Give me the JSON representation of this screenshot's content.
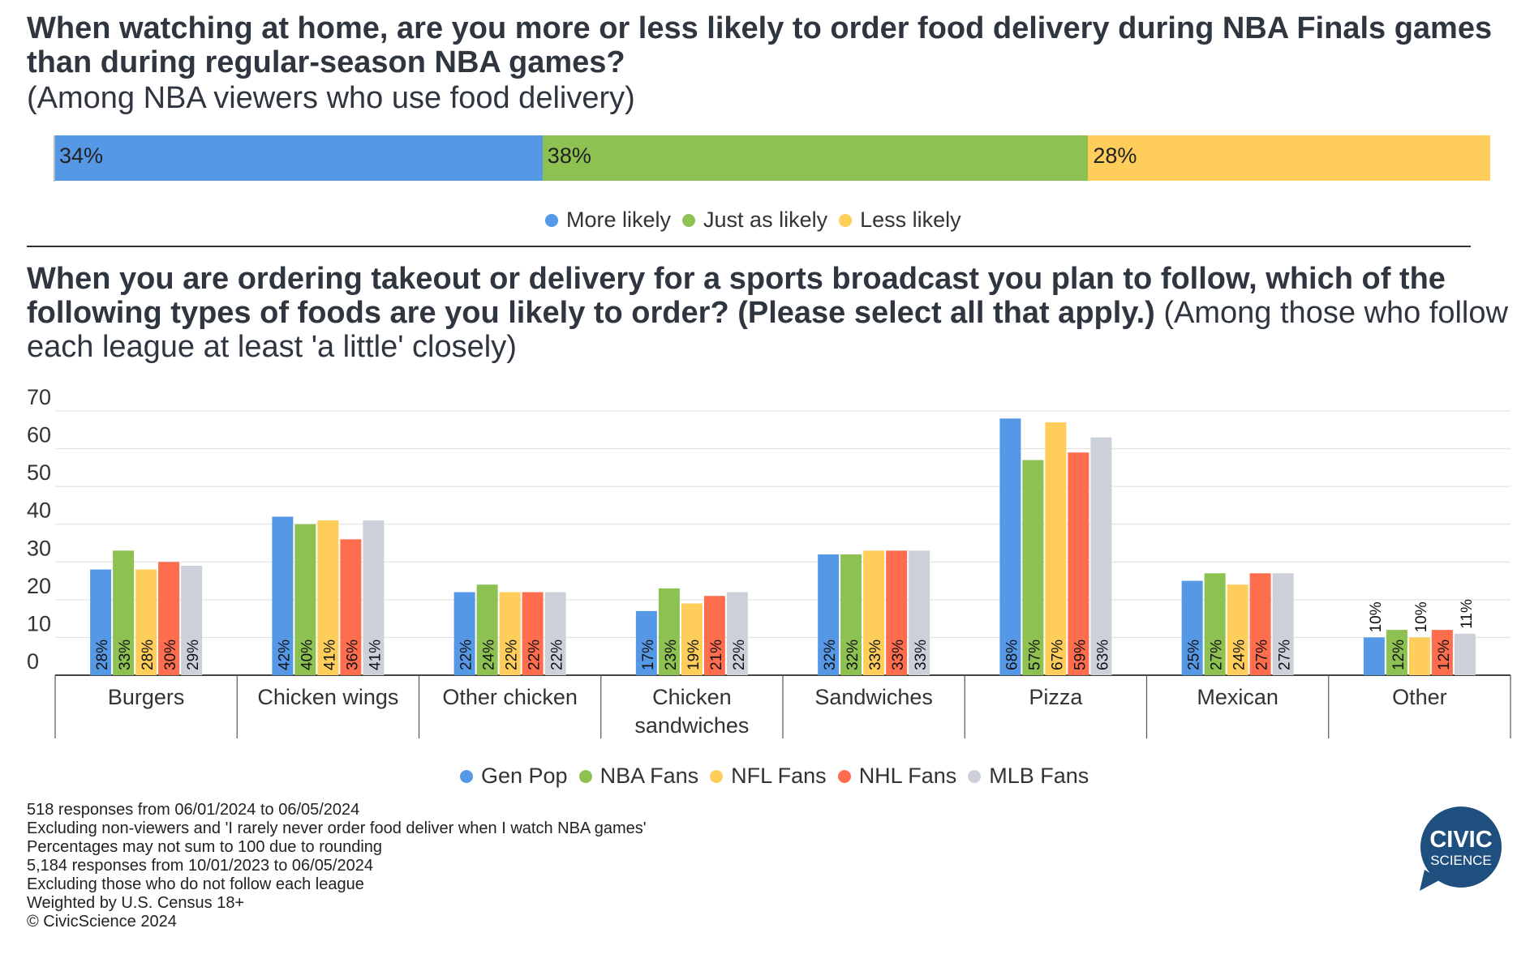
{
  "top": {
    "title": "When watching at home, are you more or less likely to order food delivery during NBA Finals games than during regular-season NBA games?",
    "subtitle": "(Among NBA viewers who use food delivery)",
    "segments": [
      {
        "label": "More likely",
        "value": 34,
        "text": "34%",
        "color": "#5599e6"
      },
      {
        "label": "Just as likely",
        "value": 38,
        "text": "38%",
        "color": "#8dc152"
      },
      {
        "label": "Less likely",
        "value": 28,
        "text": "28%",
        "color": "#fecd5a"
      }
    ]
  },
  "bottom": {
    "title_bold": "When you are ordering takeout or delivery for a sports broadcast you plan to follow, which of the following types of foods are you likely to order? (Please select all that apply.)",
    "title_rest": " (Among those who follow each league at least 'a little' closely)"
  },
  "chart_data": {
    "type": "bar",
    "categories": [
      "Burgers",
      "Chicken wings",
      "Other chicken",
      "Chicken sandwiches",
      "Sandwiches",
      "Pizza",
      "Mexican",
      "Other"
    ],
    "category_lines": [
      [
        "Burgers"
      ],
      [
        "Chicken wings"
      ],
      [
        "Other chicken"
      ],
      [
        "Chicken",
        "sandwiches"
      ],
      [
        "Sandwiches"
      ],
      [
        "Pizza"
      ],
      [
        "Mexican"
      ],
      [
        "Other"
      ]
    ],
    "series": [
      {
        "name": "Gen Pop",
        "color": "#5599e6",
        "values": [
          28,
          42,
          22,
          17,
          32,
          68,
          25,
          10
        ]
      },
      {
        "name": "NBA Fans",
        "color": "#8dc152",
        "values": [
          33,
          40,
          24,
          23,
          32,
          57,
          27,
          12
        ]
      },
      {
        "name": "NFL Fans",
        "color": "#fecd5a",
        "values": [
          28,
          41,
          22,
          19,
          33,
          67,
          24,
          10
        ]
      },
      {
        "name": "NHL Fans",
        "color": "#fe6d4e",
        "values": [
          30,
          36,
          22,
          21,
          33,
          59,
          27,
          12
        ]
      },
      {
        "name": "MLB Fans",
        "color": "#ccd1d9",
        "values": [
          29,
          41,
          22,
          22,
          33,
          63,
          27,
          11
        ]
      }
    ],
    "yticks": [
      0,
      10,
      20,
      30,
      40,
      50,
      60,
      70
    ],
    "ylim": [
      0,
      70
    ],
    "value_suffix": "%",
    "grid": true,
    "legend": "bottom"
  },
  "notes": [
    "518 responses from 06/01/2024 to 06/05/2024",
    "Excluding non-viewers and 'I rarely never order food deliver when I watch NBA games'",
    "Percentages may not sum to 100 due to rounding",
    "5,184 responses from 10/01/2023 to 06/05/2024",
    "Excluding those who do not follow each league",
    "Weighted by U.S. Census 18+",
    "© CivicScience 2024"
  ],
  "logo": {
    "line1": "CIVIC",
    "line2": "SCIENCE",
    "color": "#1f4f7e"
  }
}
